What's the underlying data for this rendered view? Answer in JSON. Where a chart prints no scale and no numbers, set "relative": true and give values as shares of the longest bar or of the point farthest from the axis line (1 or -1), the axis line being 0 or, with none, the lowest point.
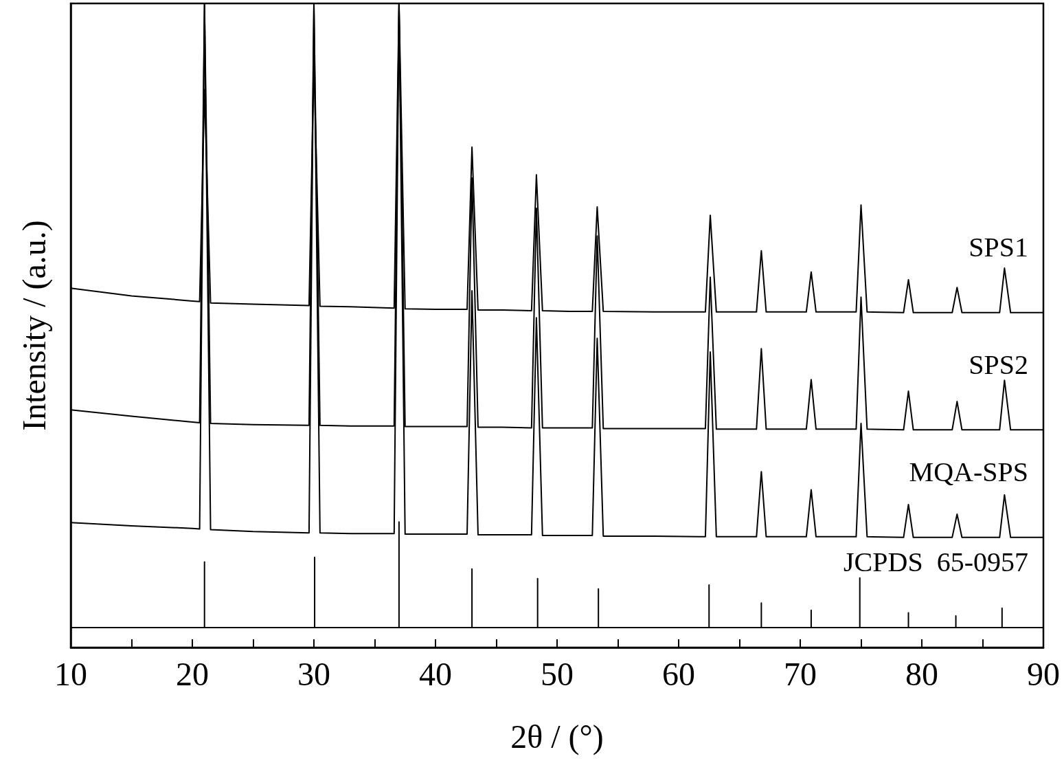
{
  "chart_data": {
    "type": "line",
    "relative": true,
    "xlabel": "2θ / (°)",
    "ylabel": "Intensity / (a.u.)",
    "xlim": [
      10,
      90
    ],
    "xticks": [
      10,
      {
        "value": 15,
        "label": null
      },
      20,
      {
        "value": 25,
        "label": null
      },
      30,
      {
        "value": 35,
        "label": null
      },
      40,
      {
        "value": 45,
        "label": null
      },
      50,
      {
        "value": 55,
        "label": null
      },
      60,
      {
        "value": 65,
        "label": null
      },
      70,
      {
        "value": 75,
        "label": null
      },
      80,
      {
        "value": 85,
        "label": null
      },
      90
    ],
    "tick_labels": "x",
    "marker": "none",
    "line_style": "solid",
    "x": [
      10,
      15,
      20,
      20.6,
      21.0,
      21.5,
      25,
      29.6,
      30.0,
      30.5,
      33,
      36.6,
      37.0,
      37.5,
      40,
      42.6,
      43.0,
      43.5,
      45.5,
      47.9,
      48.3,
      48.8,
      51,
      52.9,
      53.3,
      53.8,
      58,
      62.2,
      62.6,
      63.1,
      66.4,
      66.8,
      67.2,
      70.5,
      70.9,
      71.3,
      74.6,
      75.0,
      75.5,
      78.5,
      78.9,
      79.3,
      82.5,
      82.9,
      83.3,
      86.4,
      86.8,
      87.3,
      90
    ],
    "series": [
      {
        "name": "SPS1",
        "color": "#000000",
        "values": [
          0.558,
          0.546,
          0.538,
          0.537,
          0.866,
          0.535,
          0.533,
          0.531,
          0.911,
          0.53,
          0.529,
          0.527,
          1.0,
          0.526,
          0.525,
          0.525,
          0.777,
          0.524,
          0.524,
          0.523,
          0.734,
          0.523,
          0.522,
          0.522,
          0.684,
          0.522,
          0.521,
          0.521,
          0.671,
          0.521,
          0.521,
          0.616,
          0.521,
          0.521,
          0.583,
          0.521,
          0.521,
          0.687,
          0.521,
          0.52,
          0.571,
          0.52,
          0.52,
          0.559,
          0.52,
          0.52,
          0.589,
          0.52,
          0.52
        ]
      },
      {
        "name": "SPS2",
        "color": "#000000",
        "values": [
          0.369,
          0.359,
          0.35,
          0.349,
          1.0,
          0.348,
          0.346,
          0.345,
          1.0,
          0.345,
          0.344,
          0.344,
          1.0,
          0.343,
          0.343,
          0.343,
          0.729,
          0.342,
          0.342,
          0.341,
          0.682,
          0.341,
          0.341,
          0.341,
          0.639,
          0.34,
          0.34,
          0.34,
          0.575,
          0.339,
          0.339,
          0.464,
          0.339,
          0.339,
          0.416,
          0.339,
          0.339,
          0.544,
          0.339,
          0.338,
          0.398,
          0.338,
          0.338,
          0.382,
          0.338,
          0.338,
          0.415,
          0.338,
          0.338
        ]
      },
      {
        "name": "MQA-SPS",
        "color": "#000000",
        "values": [
          0.194,
          0.189,
          0.185,
          0.184,
          1.0,
          0.183,
          0.18,
          0.178,
          1.0,
          0.178,
          0.177,
          0.177,
          1.0,
          0.176,
          0.176,
          0.176,
          0.554,
          0.175,
          0.175,
          0.175,
          0.512,
          0.174,
          0.174,
          0.174,
          0.48,
          0.173,
          0.173,
          0.172,
          0.459,
          0.172,
          0.172,
          0.273,
          0.172,
          0.172,
          0.245,
          0.172,
          0.172,
          0.348,
          0.172,
          0.171,
          0.222,
          0.171,
          0.171,
          0.207,
          0.171,
          0.171,
          0.237,
          0.171,
          0.171
        ]
      },
      {
        "name": "JCPDS  65-0957",
        "color": "#000000",
        "x": [
          10,
          21.0,
          21.0,
          21.0,
          30.06,
          30.06,
          30.06,
          37.0,
          37.0,
          37.0,
          43.0,
          43.0,
          43.0,
          48.4,
          48.4,
          48.4,
          53.4,
          53.4,
          53.4,
          62.5,
          62.5,
          62.5,
          66.8,
          66.8,
          66.8,
          70.9,
          70.9,
          70.9,
          74.9,
          74.9,
          74.9,
          78.9,
          78.9,
          78.9,
          82.8,
          82.8,
          82.8,
          86.6,
          86.6,
          86.6,
          90
        ],
        "values": [
          0.031,
          0.031,
          0.133,
          0.031,
          0.031,
          0.14,
          0.031,
          0.031,
          0.195,
          0.031,
          0.031,
          0.122,
          0.031,
          0.031,
          0.107,
          0.031,
          0.031,
          0.091,
          0.031,
          0.031,
          0.097,
          0.031,
          0.031,
          0.069,
          0.031,
          0.031,
          0.058,
          0.031,
          0.031,
          0.108,
          0.031,
          0.031,
          0.054,
          0.031,
          0.031,
          0.049,
          0.031,
          0.031,
          0.061,
          0.031,
          0.031
        ]
      }
    ]
  }
}
